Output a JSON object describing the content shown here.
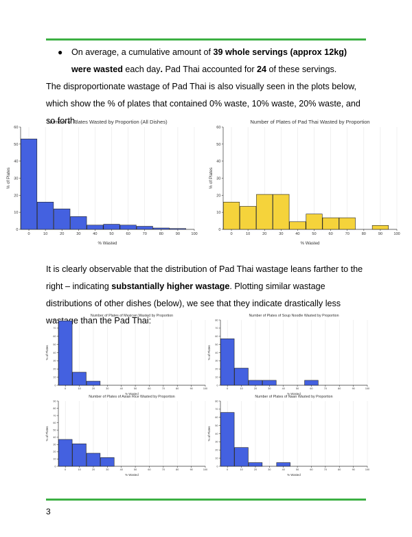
{
  "text": {
    "bullet_part1": "On average, a cumulative amount of ",
    "bullet_bold1": "39 whole servings (approx 12kg) were wasted",
    "bullet_part2": " each day",
    "bullet_bold2": ".",
    "bullet_part3": " Pad Thai accounted for ",
    "bullet_bold3": "24",
    "bullet_part4": " of these servings.",
    "para1": "The disproportionate wastage of Pad Thai is also visually seen in the plots below, which show the % of plates that contained 0% waste, 10% waste, 20% waste, and so forth.",
    "para2_part1": "It is clearly observable that the distribution of Pad Thai wastage leans farther to the right – indicating ",
    "para2_bold": "substantially higher wastage",
    "para2_part2": ". Plotting similar wastage distributions of other dishes (below), we see that they indicate drastically less wastage than the Pad Thai:",
    "page_number": "3"
  },
  "colors": {
    "rule": "#3cb043",
    "blue": "#4461e0",
    "yellow": "#f5d33b"
  },
  "chart_data": [
    {
      "type": "bar",
      "title": "Number of Plates Wasted by Proportion (All Dishes)",
      "xlabel": "% Wasted",
      "ylabel": "% of Plates",
      "x": [
        0,
        10,
        20,
        30,
        40,
        50,
        60,
        70,
        80,
        90
      ],
      "values": [
        53,
        16,
        12,
        7.5,
        2.5,
        3,
        2.5,
        1.8,
        0.8,
        0.5
      ],
      "ylim": [
        0,
        60
      ],
      "yticks": [
        0,
        10,
        20,
        30,
        40,
        50,
        60
      ],
      "xticks": [
        0,
        10,
        20,
        30,
        40,
        50,
        60,
        70,
        80,
        90,
        100
      ],
      "color": "#4461e0"
    },
    {
      "type": "bar",
      "title": "Number of Plates of Pad Thai Wasted by Proportion",
      "xlabel": "% Wasted",
      "ylabel": "% of Plates",
      "x": [
        0,
        10,
        20,
        30,
        40,
        50,
        60,
        70,
        80,
        90
      ],
      "values": [
        16,
        13.5,
        20.5,
        20.5,
        4.5,
        9,
        6.8,
        6.8,
        0,
        2.3
      ],
      "ylim": [
        0,
        60
      ],
      "yticks": [
        0,
        10,
        20,
        30,
        40,
        50,
        60
      ],
      "xticks": [
        0,
        10,
        20,
        30,
        40,
        50,
        60,
        70,
        80,
        90,
        100
      ],
      "color": "#f5d33b"
    },
    {
      "type": "bar",
      "title": "Number of Plates of Mexican Wasted by Proportion",
      "xlabel": "% Wasted",
      "ylabel": "% of Plates",
      "x": [
        0,
        10,
        20,
        30,
        40,
        50,
        60,
        70,
        80,
        90
      ],
      "values": [
        79,
        16,
        5,
        0,
        0,
        0,
        0,
        0,
        0,
        0
      ],
      "ylim": [
        0,
        80
      ],
      "yticks": [
        0,
        10,
        20,
        30,
        40,
        50,
        60,
        70,
        80
      ],
      "xticks": [
        0,
        10,
        20,
        30,
        40,
        50,
        60,
        70,
        80,
        90,
        100
      ],
      "color": "#4461e0"
    },
    {
      "type": "bar",
      "title": "Number of Plates of Soup Noodle Wasted by Proportion",
      "xlabel": "% Wasted",
      "ylabel": "% of Plates",
      "x": [
        0,
        10,
        20,
        30,
        40,
        50,
        60,
        70,
        80,
        90
      ],
      "values": [
        57,
        21,
        6,
        6,
        0,
        0,
        6,
        0,
        0,
        0
      ],
      "ylim": [
        0,
        80
      ],
      "yticks": [
        0,
        10,
        20,
        30,
        40,
        50,
        60,
        70,
        80
      ],
      "xticks": [
        0,
        10,
        20,
        30,
        40,
        50,
        60,
        70,
        80,
        90,
        100
      ],
      "color": "#4461e0"
    },
    {
      "type": "bar",
      "title": "Number of Plates of Asian Rice Wasted by Proportion",
      "xlabel": "% Wasted",
      "ylabel": "% of Plates",
      "x": [
        0,
        10,
        20,
        30,
        40,
        50,
        60,
        70,
        80,
        90
      ],
      "values": [
        37,
        31,
        18,
        12,
        0,
        0,
        0,
        0,
        0,
        0
      ],
      "ylim": [
        0,
        90
      ],
      "yticks": [
        0,
        10,
        20,
        30,
        40,
        50,
        60,
        70,
        80,
        90
      ],
      "xticks": [
        0,
        10,
        20,
        30,
        40,
        50,
        60,
        70,
        80,
        90,
        100
      ],
      "color": "#4461e0"
    },
    {
      "type": "bar",
      "title": "Number of Plates of Naan Wasted by Proportion",
      "xlabel": "% Wasted",
      "ylabel": "% of Plates",
      "x": [
        0,
        10,
        20,
        30,
        40,
        50,
        60,
        70,
        80,
        90
      ],
      "values": [
        66,
        23,
        4.5,
        0,
        4.5,
        0,
        0,
        0,
        0,
        0
      ],
      "ylim": [
        0,
        80
      ],
      "yticks": [
        0,
        10,
        20,
        30,
        40,
        50,
        60,
        70,
        80
      ],
      "xticks": [
        0,
        10,
        20,
        30,
        40,
        50,
        60,
        70,
        80,
        90,
        100
      ],
      "color": "#4461e0"
    }
  ]
}
